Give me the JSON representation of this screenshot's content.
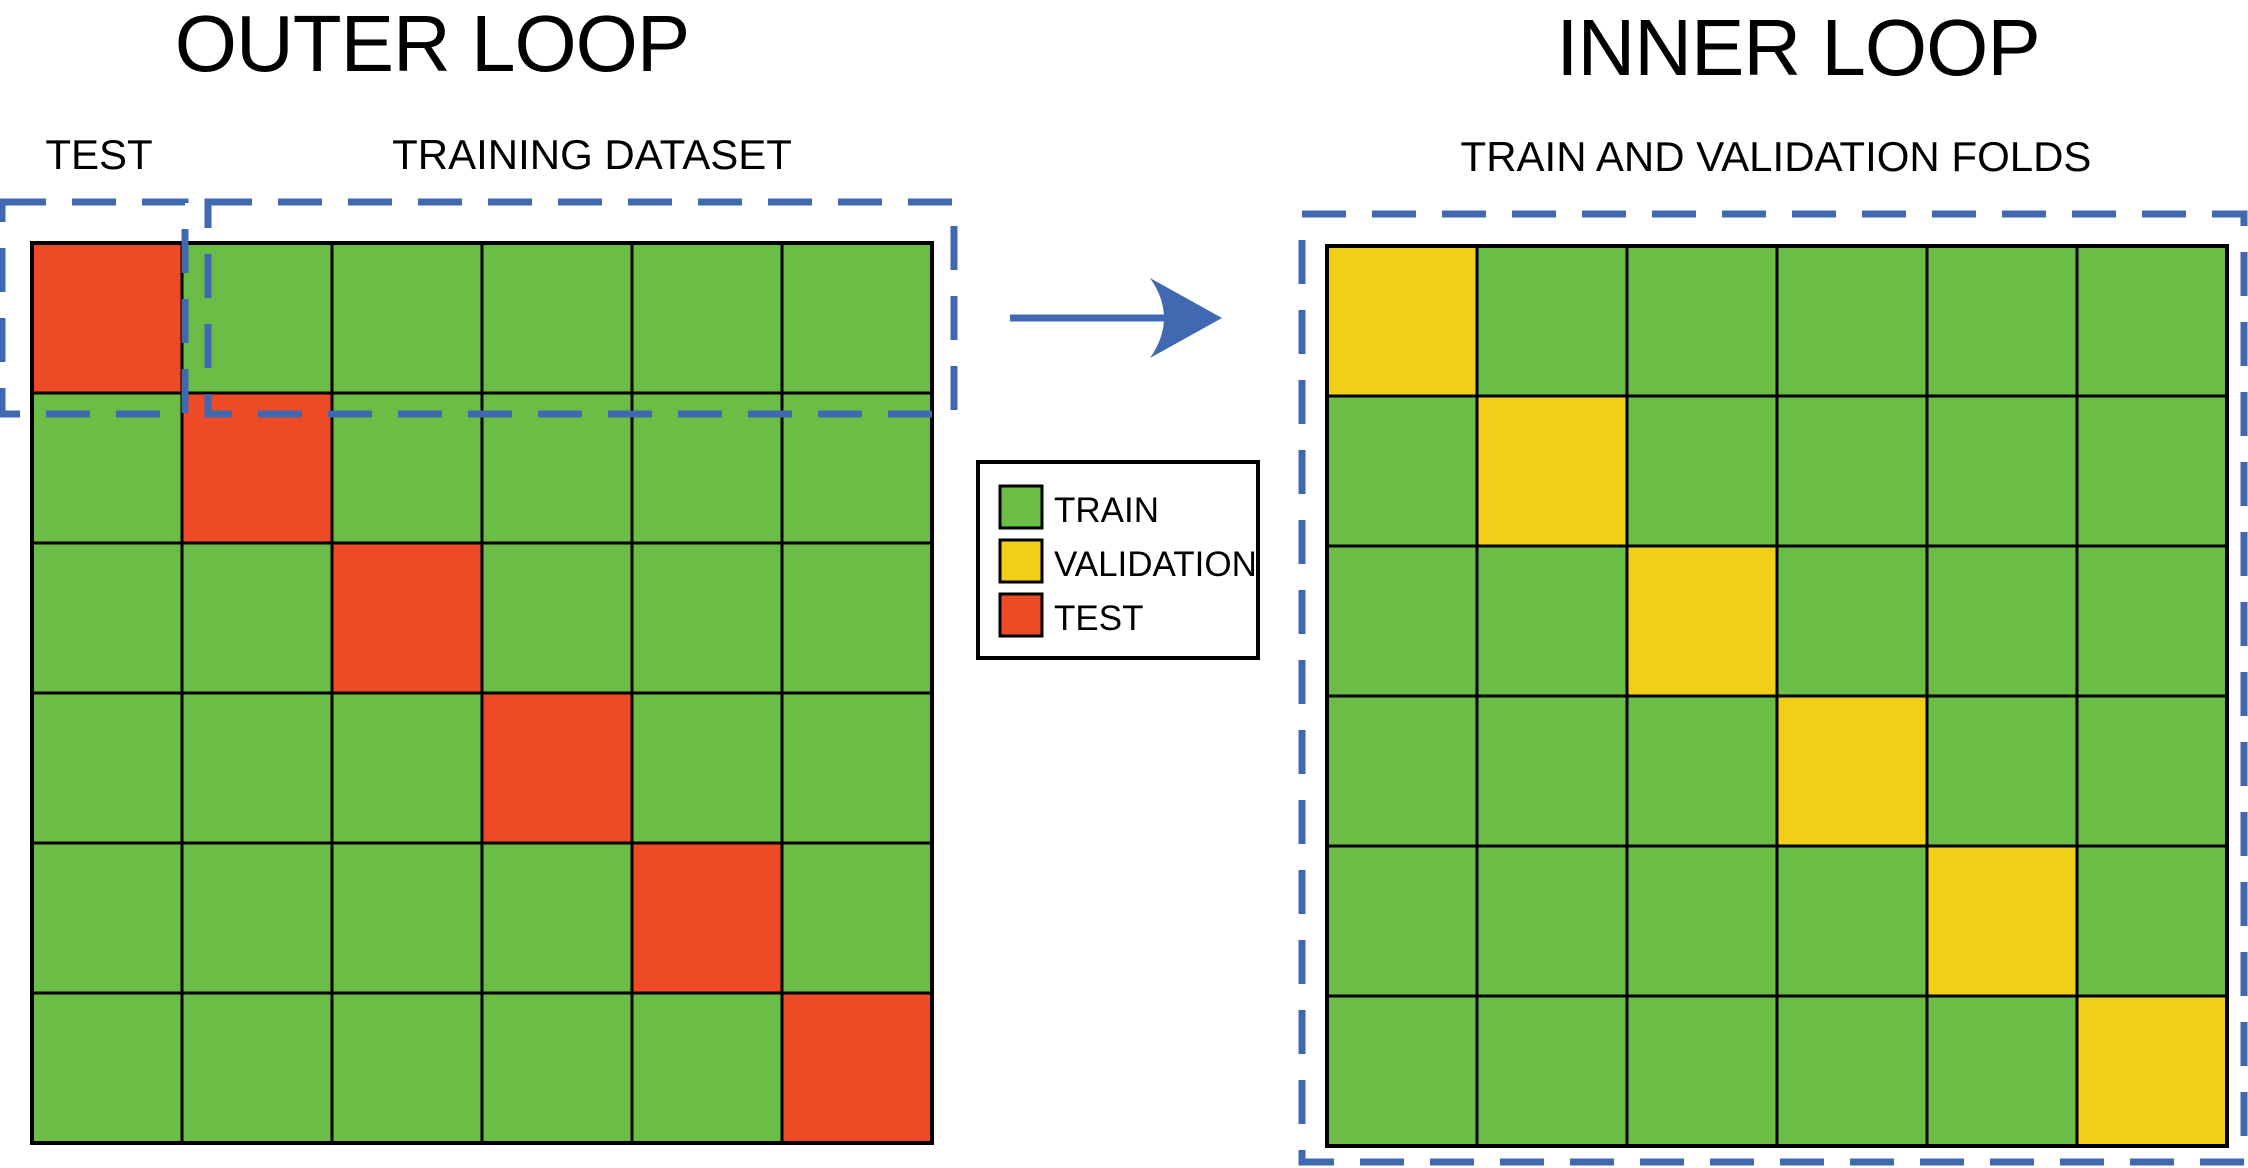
{
  "outer_loop": {
    "title": "OUTER LOOP",
    "test_label": "TEST",
    "training_label": "TRAINING DATASET",
    "grid_size": 6,
    "highlight_role": "test"
  },
  "inner_loop": {
    "title": "INNER LOOP",
    "folds_label": "TRAIN AND VALIDATION FOLDS",
    "grid_size": 6,
    "highlight_role": "validation"
  },
  "legend": {
    "items": [
      {
        "label": "TRAIN",
        "color": "#6cbd45"
      },
      {
        "label": "VALIDATION",
        "color": "#f2cf17"
      },
      {
        "label": "TEST",
        "color": "#ef4a26"
      }
    ]
  },
  "colors": {
    "train": "#6cbd45",
    "validation": "#f2cf17",
    "test": "#ef4a26",
    "dashed_box": "#4169b1",
    "arrow": "#4169b1",
    "grid_line": "#000000"
  }
}
